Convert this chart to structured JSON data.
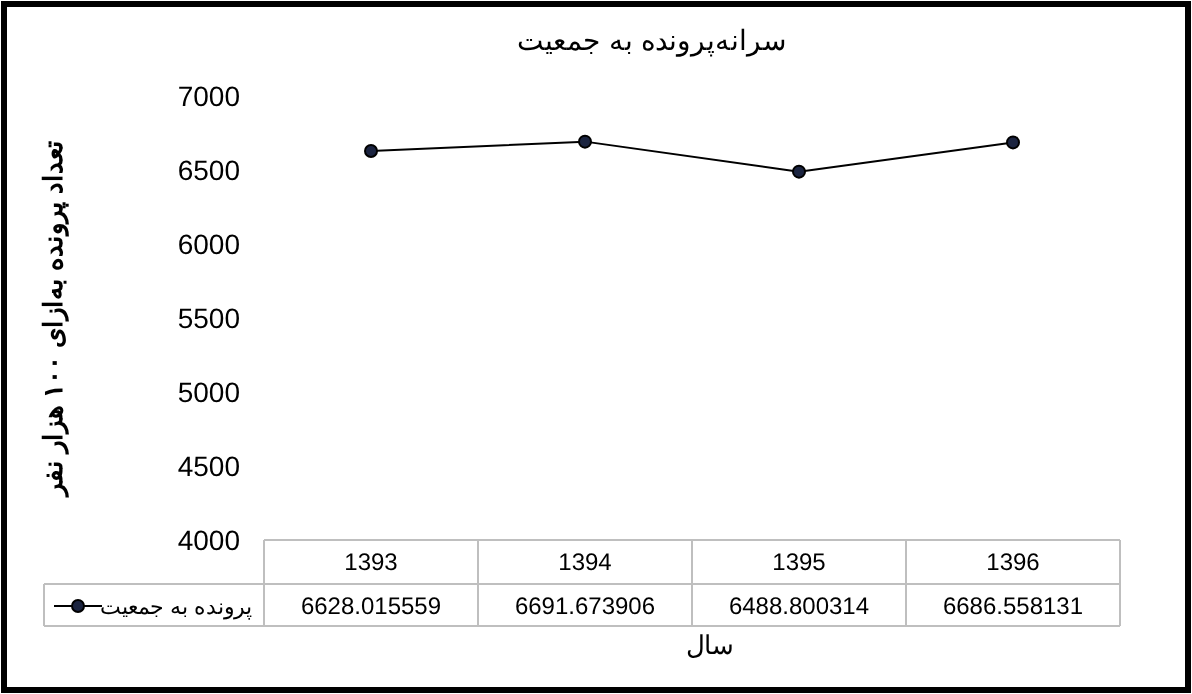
{
  "chart_data": {
    "type": "line",
    "title": "سرانه‌پرونده به جمعیت",
    "xlabel": "سال",
    "ylabel": "تعداد پرونده به‌ازای ۱۰۰ هزار نفر",
    "categories": [
      "1393",
      "1394",
      "1395",
      "1396"
    ],
    "series": [
      {
        "name": "پرونده به جمعیت",
        "color": "#000000",
        "values": [
          6628.015559,
          6691.673906,
          6488.800314,
          6686.558131
        ]
      }
    ],
    "ylim": [
      4000,
      7000
    ],
    "yticks": [
      4000,
      4500,
      5000,
      5500,
      6000,
      6500,
      7000
    ],
    "data_labels": true,
    "marker": "circle",
    "legend": "bottom",
    "line_style": "solid"
  }
}
